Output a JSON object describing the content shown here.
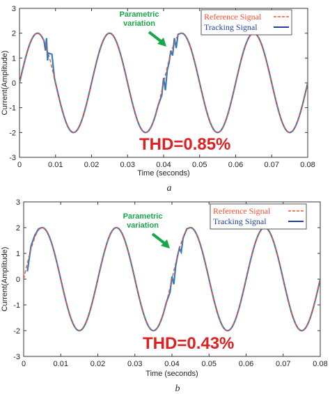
{
  "colors": {
    "reference": "#ff4b2b",
    "tracking": "#1f3f9f",
    "tracking_line": "#2f7fc0",
    "annotation": "#18a84a",
    "thd": "#e02020"
  },
  "chart_data": [
    {
      "type": "line",
      "caption": "a",
      "xlabel": "Time (seconds)",
      "ylabel": "Current(Amplitude)",
      "xlim": [
        0,
        0.08
      ],
      "ylim": [
        -3,
        3
      ],
      "x_ticks": [
        "0",
        "0.01",
        "0.02",
        "0.03",
        "0.04",
        "0.05",
        "0.06",
        "0.07",
        "0.08"
      ],
      "y_ticks": [
        "3",
        "2",
        "1",
        "0",
        "-1",
        "-2",
        "-3"
      ],
      "x_tick_values": [
        0,
        0.01,
        0.02,
        0.03,
        0.04,
        0.05,
        0.06,
        0.07,
        0.08
      ],
      "y_tick_values": [
        3,
        2,
        1,
        0,
        -1,
        -2,
        -3
      ],
      "legend": {
        "position": "top-right",
        "entries": [
          "Reference Signal",
          "Tracking Signal"
        ]
      },
      "annotation": "Parametric\nvariation",
      "thd_label": "THD=0.85%",
      "series": [
        {
          "name": "Reference Signal",
          "style": "dashed",
          "function": "2*sin(2*pi*50*t)",
          "amplitude": 2,
          "frequency_hz": 50
        },
        {
          "name": "Tracking Signal",
          "style": "solid",
          "x": [
            0,
            0.001,
            0.002,
            0.003,
            0.004,
            0.005,
            0.006,
            0.0068,
            0.0072,
            0.0075,
            0.0078,
            0.008,
            0.009,
            0.0385,
            0.0395,
            0.04,
            0.0405,
            0.041,
            0.0415,
            0.042,
            0.0425,
            0.043,
            0.0435,
            0.044,
            0.045,
            0.05,
            0.06,
            0.07,
            0.08
          ],
          "y": [
            0,
            0.95,
            1.45,
            1.75,
            1.95,
            2.0,
            1.9,
            1.7,
            1.3,
            1.8,
            0.9,
            1.2,
            1.15,
            -0.9,
            -0.5,
            0.2,
            -0.3,
            0.5,
            0.8,
            1.3,
            1.1,
            1.8,
            1.4,
            1.95,
            2.0,
            0,
            0,
            0,
            0
          ]
        }
      ]
    },
    {
      "type": "line",
      "caption": "b",
      "xlabel": "Time (seconds)",
      "ylabel": "Current(Amplitude)",
      "xlim": [
        0,
        0.08
      ],
      "ylim": [
        -3,
        3
      ],
      "x_ticks": [
        "0",
        "0.01",
        "0.02",
        "0.03",
        "0.04",
        "0.05",
        "0.06",
        "0.07",
        "0.08"
      ],
      "y_ticks": [
        "3",
        "2",
        "1",
        "0",
        "-1",
        "-2",
        "-3"
      ],
      "x_tick_values": [
        0,
        0.01,
        0.02,
        0.03,
        0.04,
        0.05,
        0.06,
        0.07,
        0.08
      ],
      "y_tick_values": [
        3,
        2,
        1,
        0,
        -1,
        -2,
        -3
      ],
      "legend": {
        "position": "top-right",
        "entries": [
          "Reference Signal",
          "Tracking Signal"
        ]
      },
      "annotation": "Parametric\nvariation",
      "thd_label": "THD=0.43%",
      "series": [
        {
          "name": "Reference Signal",
          "style": "dashed",
          "function": "2*sin(2*pi*50*t)",
          "amplitude": 2,
          "frequency_hz": 50
        },
        {
          "name": "Tracking Signal",
          "style": "solid",
          "x": [
            0,
            0.001,
            0.002,
            0.003,
            0.004,
            0.005,
            0.0385,
            0.0395,
            0.04,
            0.0405,
            0.041,
            0.0415,
            0.042,
            0.0425,
            0.043,
            0.044,
            0.045,
            0.05,
            0.08
          ],
          "y": [
            0,
            0.3,
            1.3,
            1.7,
            1.95,
            2.0,
            -0.9,
            -0.5,
            0.1,
            -0.2,
            0.5,
            0.9,
            1.2,
            1.05,
            1.6,
            1.95,
            2.0,
            0,
            0
          ]
        }
      ]
    }
  ]
}
